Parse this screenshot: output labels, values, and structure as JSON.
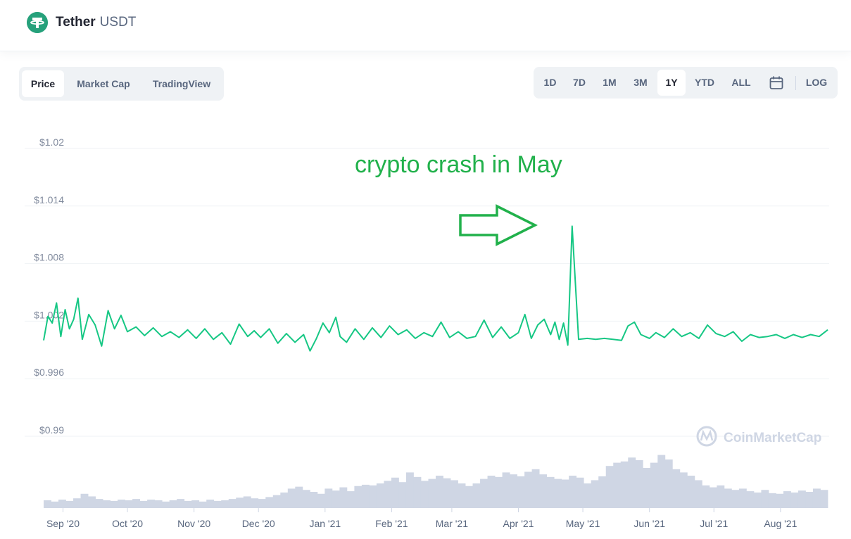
{
  "header": {
    "coin_name": "Tether",
    "coin_symbol": "USDT"
  },
  "tabs": [
    {
      "label": "Price",
      "active": true
    },
    {
      "label": "Market Cap",
      "active": false
    },
    {
      "label": "TradingView",
      "active": false
    }
  ],
  "ranges": [
    {
      "label": "1D",
      "active": false
    },
    {
      "label": "7D",
      "active": false
    },
    {
      "label": "1M",
      "active": false
    },
    {
      "label": "3M",
      "active": false
    },
    {
      "label": "1Y",
      "active": true
    },
    {
      "label": "YTD",
      "active": false
    },
    {
      "label": "ALL",
      "active": false
    }
  ],
  "calendar_icon": "calendar-icon",
  "log_label": "LOG",
  "watermark": "CoinMarketCap",
  "annotation": {
    "text": "crypto crash in May",
    "arrow_icon": "right-arrow-icon",
    "color": "#21b14b"
  },
  "colors": {
    "line": "#16c784",
    "volume": "#cfd6e4",
    "accent": "#26a17b"
  },
  "chart_data": {
    "type": "line",
    "title": "",
    "xlabel": "",
    "ylabel": "",
    "ylim": [
      0.99,
      1.02
    ],
    "y_ticks": [
      "$1.02",
      "$1.014",
      "$1.008",
      "$1.002",
      "$0.996",
      "$0.99"
    ],
    "y_tick_values": [
      1.02,
      1.014,
      1.008,
      1.002,
      0.996,
      0.99
    ],
    "x_ticks": [
      "Sep '20",
      "Oct '20",
      "Nov '20",
      "Dec '20",
      "Jan '21",
      "Feb '21",
      "Mar '21",
      "Apr '21",
      "May '21",
      "Jun '21",
      "Jul '21",
      "Aug '21"
    ],
    "x_tick_dates": [
      "2020-09-01",
      "2020-10-01",
      "2020-11-01",
      "2020-12-01",
      "2021-01-01",
      "2021-02-01",
      "2021-03-01",
      "2021-04-01",
      "2021-05-01",
      "2021-06-01",
      "2021-07-01",
      "2021-08-01"
    ],
    "xlim": [
      "2020-08-23",
      "2021-08-23"
    ],
    "grid": true,
    "legend": "none",
    "series": [
      {
        "x": [
          "2020-08-23",
          "2020-08-25",
          "2020-08-27",
          "2020-08-29",
          "2020-08-31",
          "2020-09-02",
          "2020-09-04",
          "2020-09-06",
          "2020-09-08",
          "2020-09-10",
          "2020-09-13",
          "2020-09-16",
          "2020-09-19",
          "2020-09-22",
          "2020-09-25",
          "2020-09-28",
          "2020-10-01",
          "2020-10-05",
          "2020-10-09",
          "2020-10-13",
          "2020-10-17",
          "2020-10-21",
          "2020-10-25",
          "2020-10-29",
          "2020-11-02",
          "2020-11-06",
          "2020-11-10",
          "2020-11-14",
          "2020-11-18",
          "2020-11-22",
          "2020-11-26",
          "2020-11-29",
          "2020-12-02",
          "2020-12-06",
          "2020-12-10",
          "2020-12-14",
          "2020-12-18",
          "2020-12-22",
          "2020-12-25",
          "2020-12-28",
          "2020-12-31",
          "2021-01-03",
          "2021-01-06",
          "2021-01-08",
          "2021-01-11",
          "2021-01-15",
          "2021-01-19",
          "2021-01-23",
          "2021-01-27",
          "2021-01-31",
          "2021-02-04",
          "2021-02-08",
          "2021-02-12",
          "2021-02-16",
          "2021-02-20",
          "2021-02-24",
          "2021-02-28",
          "2021-03-04",
          "2021-03-08",
          "2021-03-12",
          "2021-03-16",
          "2021-03-20",
          "2021-03-24",
          "2021-03-28",
          "2021-04-01",
          "2021-04-04",
          "2021-04-07",
          "2021-04-10",
          "2021-04-13",
          "2021-04-16",
          "2021-04-18",
          "2021-04-20",
          "2021-04-22",
          "2021-04-24",
          "2021-04-26",
          "2021-04-29",
          "2021-05-03",
          "2021-05-07",
          "2021-05-11",
          "2021-05-15",
          "2021-05-19",
          "2021-05-22",
          "2021-05-25",
          "2021-05-28",
          "2021-06-01",
          "2021-06-04",
          "2021-06-08",
          "2021-06-12",
          "2021-06-16",
          "2021-06-20",
          "2021-06-24",
          "2021-06-28",
          "2021-07-02",
          "2021-07-06",
          "2021-07-10",
          "2021-07-14",
          "2021-07-18",
          "2021-07-22",
          "2021-07-26",
          "2021-07-30",
          "2021-08-03",
          "2021-08-07",
          "2021-08-11",
          "2021-08-15",
          "2021-08-19",
          "2021-08-23"
        ],
        "values": [
          1.0,
          1.0025,
          1.0018,
          1.0039,
          1.0004,
          1.0032,
          1.0012,
          1.0022,
          1.0044,
          1.0001,
          1.0027,
          1.0016,
          0.9994,
          1.0031,
          1.0012,
          1.0026,
          1.0009,
          1.0014,
          1.0005,
          1.0013,
          1.0004,
          1.0009,
          1.0003,
          1.0011,
          1.0002,
          1.0012,
          1.0001,
          1.0008,
          0.9996,
          1.0017,
          1.0004,
          1.001,
          1.0003,
          1.0012,
          0.9997,
          1.0007,
          0.9998,
          1.0006,
          0.9989,
          1.0002,
          1.0018,
          1.0008,
          1.0024,
          1.0004,
          0.9998,
          1.0012,
          1.0001,
          1.0013,
          1.0003,
          1.0015,
          1.0006,
          1.0011,
          1.0002,
          1.0008,
          1.0004,
          1.0019,
          1.0003,
          1.0009,
          1.0002,
          1.0004,
          1.0021,
          1.0003,
          1.0014,
          1.0002,
          1.0008,
          1.0027,
          1.0002,
          1.0016,
          1.0022,
          1.0006,
          1.0019,
          1.0001,
          1.0018,
          0.9995,
          1.0119,
          1.0001,
          1.0002,
          1.0001,
          1.0002,
          1.0001,
          1.0,
          1.0015,
          1.0019,
          1.0006,
          1.0002,
          1.0008,
          1.0003,
          1.0012,
          1.0004,
          1.0008,
          1.0002,
          1.0016,
          1.0007,
          1.0004,
          1.0009,
          0.9999,
          1.0006,
          1.0003,
          1.0004,
          1.0006,
          1.0002,
          1.0006,
          1.0003,
          1.0006,
          1.0004,
          1.0011
        ]
      }
    ],
    "volume": {
      "note": "relative trading volume, 0-1",
      "values": [
        0.12,
        0.1,
        0.13,
        0.11,
        0.15,
        0.22,
        0.18,
        0.14,
        0.12,
        0.11,
        0.13,
        0.12,
        0.14,
        0.11,
        0.13,
        0.12,
        0.1,
        0.12,
        0.14,
        0.11,
        0.12,
        0.1,
        0.13,
        0.11,
        0.12,
        0.14,
        0.16,
        0.18,
        0.15,
        0.14,
        0.17,
        0.2,
        0.24,
        0.3,
        0.33,
        0.28,
        0.25,
        0.22,
        0.3,
        0.27,
        0.32,
        0.26,
        0.34,
        0.36,
        0.35,
        0.38,
        0.42,
        0.47,
        0.4,
        0.55,
        0.48,
        0.42,
        0.45,
        0.5,
        0.46,
        0.43,
        0.38,
        0.34,
        0.38,
        0.45,
        0.5,
        0.48,
        0.55,
        0.52,
        0.49,
        0.56,
        0.6,
        0.52,
        0.48,
        0.45,
        0.44,
        0.5,
        0.47,
        0.38,
        0.43,
        0.49,
        0.65,
        0.7,
        0.72,
        0.78,
        0.74,
        0.62,
        0.7,
        0.82,
        0.75,
        0.6,
        0.55,
        0.5,
        0.43,
        0.35,
        0.32,
        0.35,
        0.3,
        0.28,
        0.3,
        0.26,
        0.24,
        0.28,
        0.23,
        0.22,
        0.26,
        0.24,
        0.27,
        0.25,
        0.3,
        0.28
      ]
    }
  }
}
